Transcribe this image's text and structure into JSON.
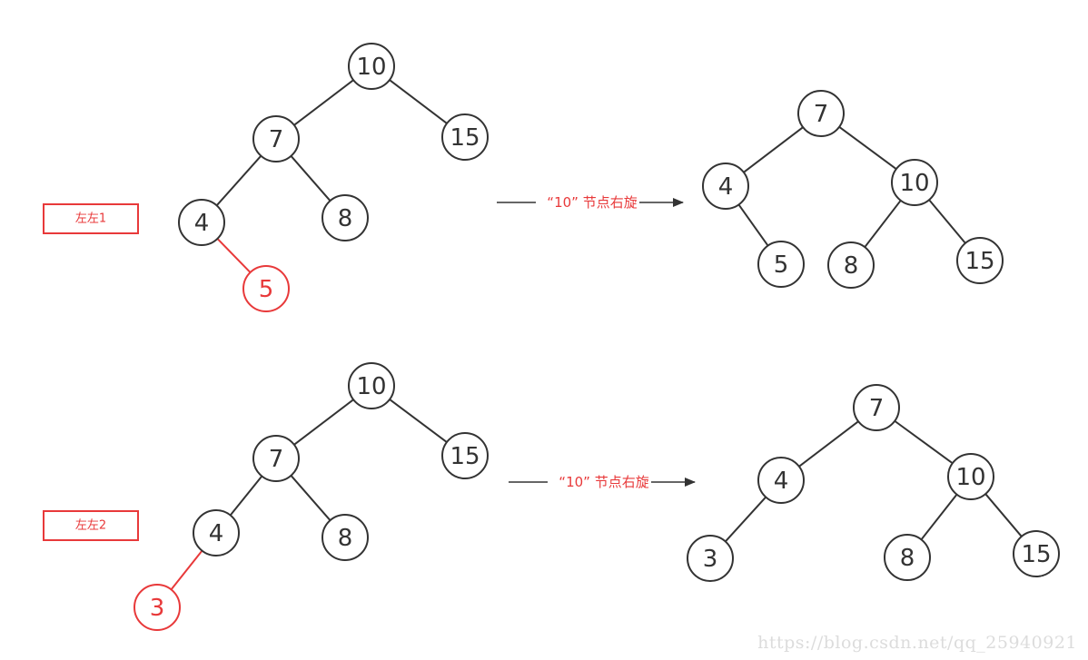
{
  "colors": {
    "normal": "#333333",
    "highlight": "#e8393a",
    "text": "#333333",
    "watermark": "#dcdcdc"
  },
  "rows": [
    {
      "case_label": "左左1",
      "arrow_label": "“10” 节点右旋",
      "before": {
        "nodes": [
          {
            "id": "n10",
            "label": "10",
            "highlight": false
          },
          {
            "id": "n7",
            "label": "7",
            "highlight": false
          },
          {
            "id": "n15",
            "label": "15",
            "highlight": false
          },
          {
            "id": "n4",
            "label": "4",
            "highlight": false
          },
          {
            "id": "n8",
            "label": "8",
            "highlight": false
          },
          {
            "id": "n5",
            "label": "5",
            "highlight": true
          }
        ],
        "edges": [
          {
            "from": "n10",
            "to": "n7",
            "highlight": false
          },
          {
            "from": "n10",
            "to": "n15",
            "highlight": false
          },
          {
            "from": "n7",
            "to": "n4",
            "highlight": false
          },
          {
            "from": "n7",
            "to": "n8",
            "highlight": false
          },
          {
            "from": "n4",
            "to": "n5",
            "highlight": true
          }
        ]
      },
      "after": {
        "nodes": [
          {
            "id": "m7",
            "label": "7",
            "highlight": false
          },
          {
            "id": "m4",
            "label": "4",
            "highlight": false
          },
          {
            "id": "m10",
            "label": "10",
            "highlight": false
          },
          {
            "id": "m5",
            "label": "5",
            "highlight": false
          },
          {
            "id": "m8",
            "label": "8",
            "highlight": false
          },
          {
            "id": "m15",
            "label": "15",
            "highlight": false
          }
        ],
        "edges": [
          {
            "from": "m7",
            "to": "m4",
            "highlight": false
          },
          {
            "from": "m7",
            "to": "m10",
            "highlight": false
          },
          {
            "from": "m4",
            "to": "m5",
            "highlight": false
          },
          {
            "from": "m10",
            "to": "m8",
            "highlight": false
          },
          {
            "from": "m10",
            "to": "m15",
            "highlight": false
          }
        ]
      }
    },
    {
      "case_label": "左左2",
      "arrow_label": "“10” 节点右旋",
      "before": {
        "nodes": [
          {
            "id": "n10",
            "label": "10",
            "highlight": false
          },
          {
            "id": "n7",
            "label": "7",
            "highlight": false
          },
          {
            "id": "n15",
            "label": "15",
            "highlight": false
          },
          {
            "id": "n4",
            "label": "4",
            "highlight": false
          },
          {
            "id": "n8",
            "label": "8",
            "highlight": false
          },
          {
            "id": "n3",
            "label": "3",
            "highlight": true
          }
        ],
        "edges": [
          {
            "from": "n10",
            "to": "n7",
            "highlight": false
          },
          {
            "from": "n10",
            "to": "n15",
            "highlight": false
          },
          {
            "from": "n7",
            "to": "n4",
            "highlight": false
          },
          {
            "from": "n7",
            "to": "n8",
            "highlight": false
          },
          {
            "from": "n4",
            "to": "n3",
            "highlight": true
          }
        ]
      },
      "after": {
        "nodes": [
          {
            "id": "m7",
            "label": "7",
            "highlight": false
          },
          {
            "id": "m4",
            "label": "4",
            "highlight": false
          },
          {
            "id": "m10",
            "label": "10",
            "highlight": false
          },
          {
            "id": "m3",
            "label": "3",
            "highlight": false
          },
          {
            "id": "m8",
            "label": "8",
            "highlight": false
          },
          {
            "id": "m15",
            "label": "15",
            "highlight": false
          }
        ],
        "edges": [
          {
            "from": "m7",
            "to": "m4",
            "highlight": false
          },
          {
            "from": "m7",
            "to": "m10",
            "highlight": false
          },
          {
            "from": "m4",
            "to": "m3",
            "highlight": false
          },
          {
            "from": "m10",
            "to": "m8",
            "highlight": false
          },
          {
            "from": "m10",
            "to": "m15",
            "highlight": false
          }
        ]
      }
    }
  ],
  "watermark": "https://blog.csdn.net/qq_25940921"
}
